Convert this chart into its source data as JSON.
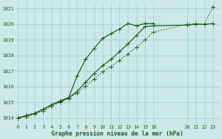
{
  "bg_color": "#cce8e8",
  "grid_color": "#99cccc",
  "line_color": "#1a5c1a",
  "marker_color": "#1a5c1a",
  "title": "Graphe pression niveau de la mer (hPa)",
  "title_color": "#1a5c1a",
  "ylim": [
    1013.6,
    1021.4
  ],
  "yticks": [
    1014,
    1015,
    1016,
    1017,
    1018,
    1019,
    1020,
    1021
  ],
  "xticks": [
    0,
    1,
    2,
    3,
    4,
    5,
    6,
    7,
    8,
    9,
    10,
    11,
    12,
    13,
    14,
    15,
    16,
    20,
    21,
    22,
    23
  ],
  "xlim": [
    -0.3,
    23.8
  ],
  "series": [
    {
      "x": [
        0,
        1,
        2,
        3,
        4,
        5,
        6,
        7,
        8,
        9,
        10,
        11,
        12,
        13,
        14,
        15,
        16,
        20,
        21,
        22,
        23
      ],
      "y": [
        1014.0,
        1014.1,
        1014.25,
        1014.45,
        1014.75,
        1015.0,
        1015.25,
        1015.6,
        1016.05,
        1016.5,
        1016.95,
        1017.3,
        1017.7,
        1018.1,
        1018.55,
        1019.0,
        1019.5,
        1020.0,
        1020.05,
        1020.0,
        1021.1
      ],
      "linestyle": "--",
      "linewidth": 0.7,
      "markersize": 2.2
    },
    {
      "x": [
        0,
        1,
        2,
        3,
        4,
        5,
        6,
        7,
        8,
        9,
        10,
        11,
        12,
        13,
        14,
        15,
        16
      ],
      "y": [
        1014.0,
        1014.15,
        1014.3,
        1014.55,
        1014.85,
        1015.1,
        1015.3,
        1016.7,
        1017.75,
        1018.45,
        1019.1,
        1019.4,
        1019.7,
        1020.05,
        1019.9,
        1020.05,
        1020.05
      ],
      "linestyle": "-",
      "linewidth": 0.9,
      "markersize": 2.5
    },
    {
      "x": [
        0,
        1,
        2,
        3,
        4,
        5,
        6,
        7,
        8,
        9,
        10,
        11,
        12,
        13,
        14,
        15,
        16,
        20,
        21,
        22,
        23
      ],
      "y": [
        1014.0,
        1014.15,
        1014.3,
        1014.55,
        1014.85,
        1015.05,
        1015.3,
        1015.7,
        1016.3,
        1016.85,
        1017.35,
        1017.75,
        1018.25,
        1018.75,
        1019.3,
        1019.85,
        1019.9,
        1019.95,
        1020.0,
        1020.0,
        1020.05
      ],
      "linestyle": "-",
      "linewidth": 0.9,
      "markersize": 2.5
    }
  ]
}
